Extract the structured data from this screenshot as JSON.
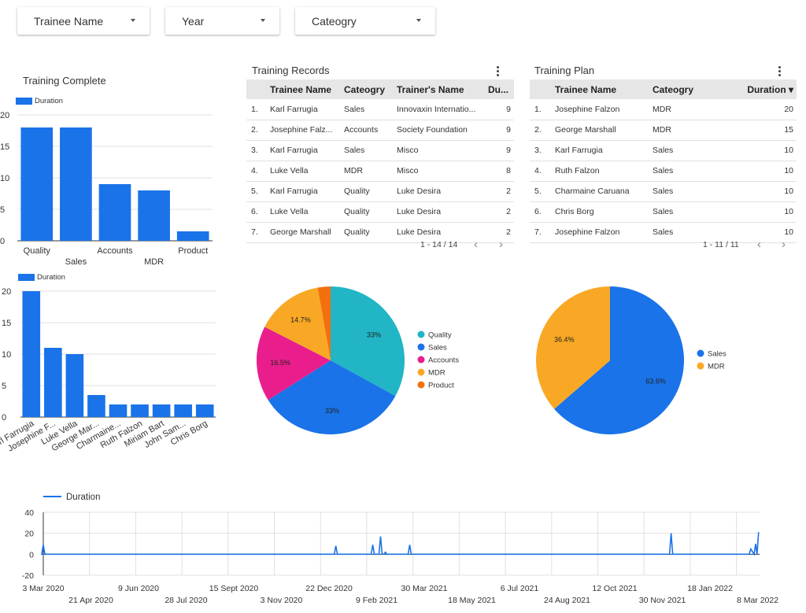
{
  "filters": [
    {
      "label": "Trainee Name"
    },
    {
      "label": "Year"
    },
    {
      "label": "Cateogry"
    }
  ],
  "colors": {
    "blue": "#1a73e8",
    "teal": "#21b5c5",
    "pink": "#e91e8c",
    "orange": "#f9a825",
    "darkorange": "#f4700f",
    "grid": "#e0e0e0"
  },
  "training_complete": {
    "title": "Training Complete",
    "legend": "Duration"
  },
  "trainee_chart": {
    "legend": "Duration"
  },
  "training_records": {
    "title": "Training Records",
    "columns": [
      "Trainee Name",
      "Cateogry",
      "Trainer's Name",
      "Du..."
    ],
    "rows": [
      {
        "idx": "1.",
        "name": "Karl Farrugia",
        "category": "Sales",
        "trainer": "Innovaxin Internatio...",
        "duration": "9"
      },
      {
        "idx": "2.",
        "name": "Josephine Falz...",
        "category": "Accounts",
        "trainer": "Society Foundation",
        "duration": "9"
      },
      {
        "idx": "3.",
        "name": "Karl Farrugia",
        "category": "Sales",
        "trainer": "Misco",
        "duration": "9"
      },
      {
        "idx": "4.",
        "name": "Luke Vella",
        "category": "MDR",
        "trainer": "Misco",
        "duration": "8"
      },
      {
        "idx": "5.",
        "name": "Karl Farrugia",
        "category": "Quality",
        "trainer": "Luke Desira",
        "duration": "2"
      },
      {
        "idx": "6.",
        "name": "Luke Vella",
        "category": "Quality",
        "trainer": "Luke Desira",
        "duration": "2"
      },
      {
        "idx": "7.",
        "name": "George Marshall",
        "category": "Quality",
        "trainer": "Luke Desira",
        "duration": "2"
      }
    ],
    "pager": "1 - 14 / 14",
    "prev": "‹",
    "next": "›"
  },
  "training_plan": {
    "title": "Training Plan",
    "columns": [
      "Trainee Name",
      "Cateogry",
      "Duration ▾"
    ],
    "rows": [
      {
        "idx": "1.",
        "name": "Josephine Falzon",
        "category": "MDR",
        "duration": "20"
      },
      {
        "idx": "2.",
        "name": "George Marshall",
        "category": "MDR",
        "duration": "15"
      },
      {
        "idx": "3.",
        "name": "Karl Farrugia",
        "category": "Sales",
        "duration": "10"
      },
      {
        "idx": "4.",
        "name": "Ruth Falzon",
        "category": "Sales",
        "duration": "10"
      },
      {
        "idx": "5.",
        "name": "Charmaine Caruana",
        "category": "Sales",
        "duration": "10"
      },
      {
        "idx": "6.",
        "name": "Chris Borg",
        "category": "Sales",
        "duration": "10"
      },
      {
        "idx": "7.",
        "name": "Josephine Falzon",
        "category": "Sales",
        "duration": "10"
      }
    ],
    "pager": "1 - 11 / 11",
    "prev": "‹",
    "next": "›"
  },
  "chart_data": [
    {
      "type": "bar",
      "name": "training_complete",
      "categories": [
        "Quality",
        "Sales",
        "Accounts",
        "MDR",
        "Product"
      ],
      "series": [
        {
          "name": "Duration",
          "values": [
            18,
            18,
            9,
            8,
            1.5
          ]
        }
      ],
      "yticks": [
        "0",
        "5",
        "10",
        "15",
        "20"
      ],
      "ylim": [
        0,
        20
      ]
    },
    {
      "type": "bar",
      "name": "trainee_durations",
      "categories": [
        "Karl Farrugia",
        "Josephine F...",
        "Luke Vella",
        "George Mar...",
        "Charmaine...",
        "Ruth Falzon",
        "Miriam Bart",
        "John Sam...",
        "Chris Borg"
      ],
      "series": [
        {
          "name": "Duration",
          "values": [
            20,
            11,
            10,
            3.5,
            2,
            2,
            2,
            2,
            2
          ]
        }
      ],
      "yticks": [
        "0",
        "5",
        "10",
        "15",
        "20"
      ],
      "ylim": [
        0,
        20
      ]
    },
    {
      "type": "pie",
      "name": "records_by_category",
      "labels": [
        "Quality",
        "Sales",
        "Accounts",
        "MDR",
        "Product"
      ],
      "values": [
        33,
        33,
        16.5,
        14.7,
        2.8
      ],
      "slice_labels": [
        "33%",
        "33%",
        "16.5%",
        "14.7%",
        ""
      ],
      "colors": [
        "#21b5c5",
        "#1a73e8",
        "#e91e8c",
        "#f9a825",
        "#f4700f"
      ]
    },
    {
      "type": "pie",
      "name": "plan_by_category",
      "labels": [
        "Sales",
        "MDR"
      ],
      "values": [
        63.6,
        36.4
      ],
      "slice_labels": [
        "63.6%",
        "36.4%"
      ],
      "colors": [
        "#1a73e8",
        "#f9a825"
      ]
    },
    {
      "type": "line",
      "name": "duration_over_time",
      "series_name": "Duration",
      "ylim": [
        -20,
        40
      ],
      "yticks": [
        "40",
        "20",
        "0",
        "-20"
      ],
      "xticks_top": [
        "3 Mar 2020",
        "9 Jun 2020",
        "15 Sept 2020",
        "22 Dec 2020",
        "30 Mar 2021",
        "6 Jul 2021",
        "12 Oct 2021",
        "18 Jan 2022"
      ],
      "xticks_bottom": [
        "21 Apr 2020",
        "28 Jul 2020",
        "3 Nov 2020",
        "9 Feb 2021",
        "18 May 2021",
        "24 Aug 2021",
        "30 Nov 2021",
        "8 Mar 2022"
      ],
      "x": [
        "2020-03-03",
        "2020-12-29",
        "2021-02-05",
        "2021-02-13",
        "2021-02-18",
        "2021-03-15",
        "2021-12-09",
        "2022-03-01",
        "2022-03-06",
        "2022-03-09"
      ],
      "y": [
        9,
        8,
        9,
        17,
        2,
        9,
        20,
        5,
        10,
        21
      ]
    }
  ]
}
